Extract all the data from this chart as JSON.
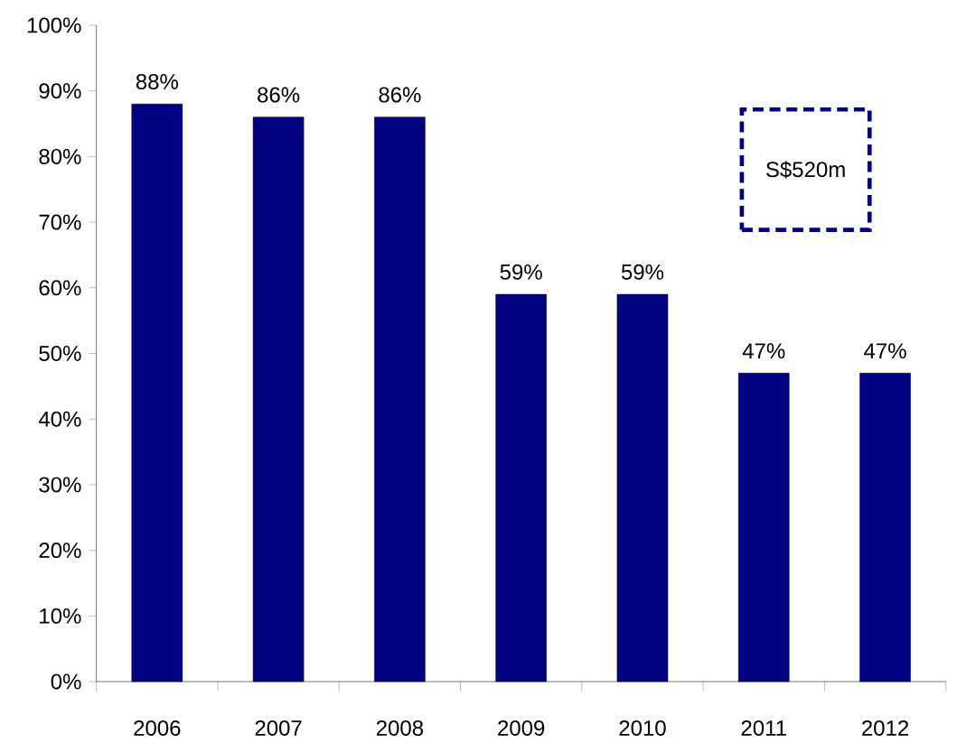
{
  "chart_data": {
    "type": "bar",
    "categories": [
      "2006",
      "2007",
      "2008",
      "2009",
      "2010",
      "2011",
      "2012"
    ],
    "values": [
      88,
      86,
      86,
      59,
      59,
      47,
      47
    ],
    "value_labels": [
      "88%",
      "86%",
      "86%",
      "59%",
      "59%",
      "47%",
      "47%"
    ],
    "color": "#000080",
    "ylim": [
      0,
      100
    ],
    "yticks": [
      {
        "value": 0,
        "label": "0%"
      },
      {
        "value": 10,
        "label": "10%"
      },
      {
        "value": 20,
        "label": "20%"
      },
      {
        "value": 30,
        "label": "30%"
      },
      {
        "value": 40,
        "label": "40%"
      },
      {
        "value": 50,
        "label": "50%"
      },
      {
        "value": 60,
        "label": "60%"
      },
      {
        "value": 70,
        "label": "70%"
      },
      {
        "value": 80,
        "label": "80%"
      },
      {
        "value": 90,
        "label": "90%"
      },
      {
        "value": 100,
        "label": "100%"
      }
    ],
    "annotations": [
      "S$520m"
    ],
    "grid": false
  }
}
